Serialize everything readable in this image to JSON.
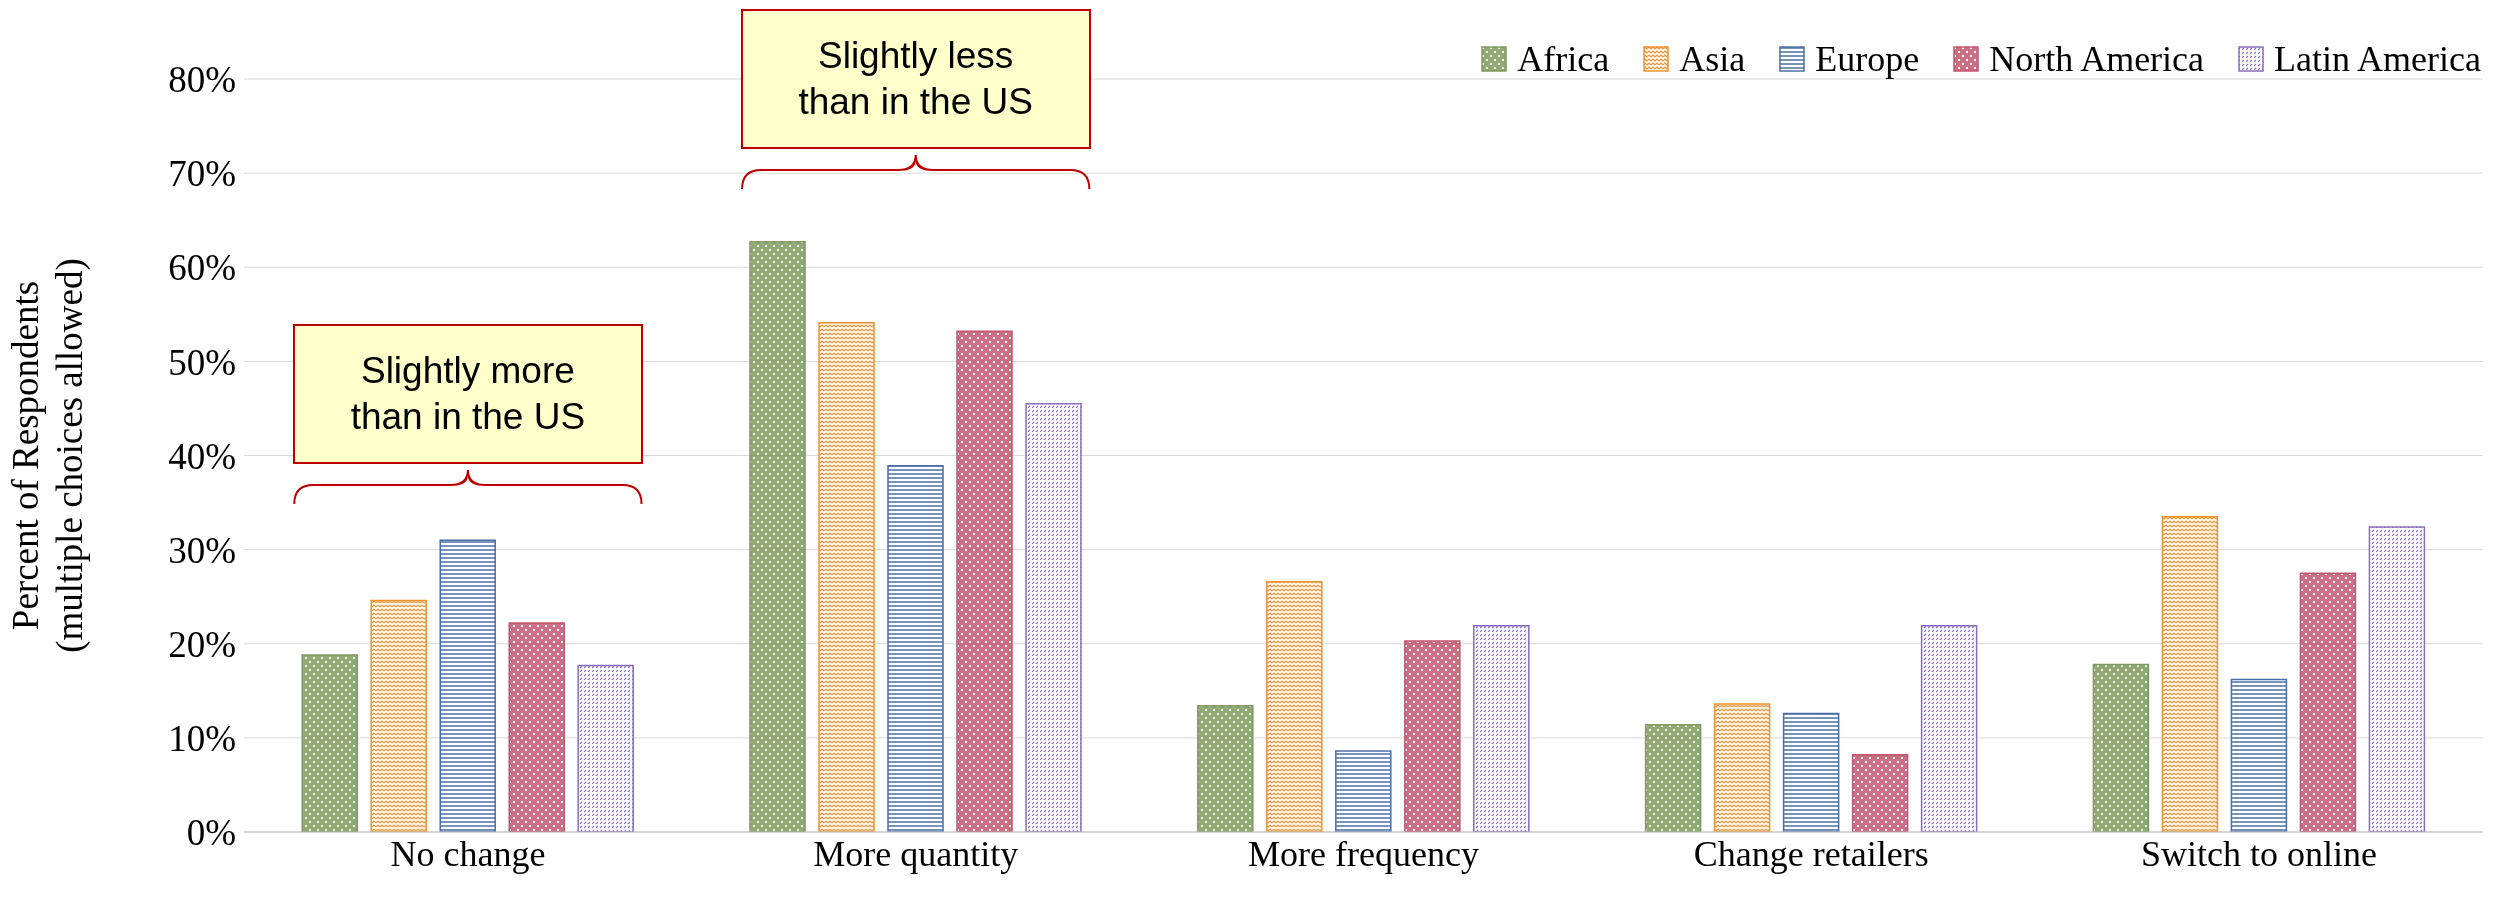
{
  "chart_data": {
    "type": "bar",
    "ylabel": "Percent of Respondents (multiple choices allowed)",
    "categories": [
      "No change",
      "More quantity",
      "More frequency",
      "Change retailers",
      "Switch to online"
    ],
    "series": [
      {
        "name": "Africa",
        "color": "#7f9a5e",
        "values": [
          18.8,
          62.7,
          13.4,
          11.4,
          17.8
        ]
      },
      {
        "name": "Asia",
        "color": "#f0922e",
        "values": [
          24.6,
          54.1,
          26.6,
          13.6,
          33.5
        ]
      },
      {
        "name": "Europe",
        "color": "#4a6fa8",
        "values": [
          31.0,
          38.9,
          8.6,
          12.6,
          16.2
        ]
      },
      {
        "name": "North America",
        "color": "#c2566e",
        "values": [
          22.2,
          53.2,
          20.3,
          8.2,
          27.5
        ]
      },
      {
        "name": "Latin America",
        "color": "#8a6cc0",
        "values": [
          17.7,
          45.5,
          21.9,
          21.9,
          32.4
        ]
      }
    ],
    "ylim": [
      0,
      80
    ],
    "yticks": [
      {
        "value": 0,
        "label": "0%"
      },
      {
        "value": 10,
        "label": "10%"
      },
      {
        "value": 20,
        "label": "20%"
      },
      {
        "value": 30,
        "label": "30%"
      },
      {
        "value": 40,
        "label": "40%"
      },
      {
        "value": 50,
        "label": "50%"
      },
      {
        "value": 60,
        "label": "60%"
      },
      {
        "value": 70,
        "label": "70%"
      },
      {
        "value": 80,
        "label": "80%"
      }
    ],
    "grid": "y",
    "legend": "top right",
    "annotations": [
      "Slightly more than in the US",
      "Slightly less than in the US"
    ]
  }
}
